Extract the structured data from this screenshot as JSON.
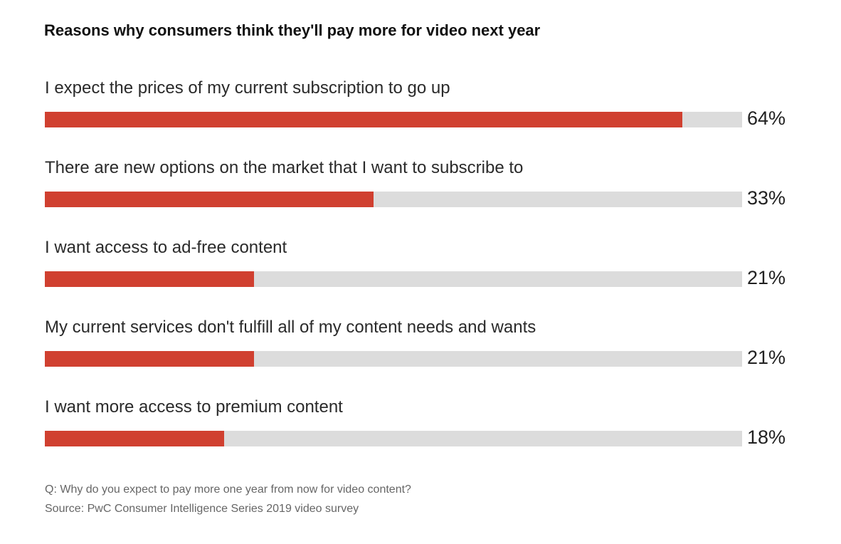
{
  "chart_data": {
    "type": "bar",
    "orientation": "horizontal",
    "title": "Reasons why consumers think they'll pay more for video next year",
    "categories": [
      "I expect the prices of my current subscription to go up",
      "There are new options on the market that I want to subscribe to",
      "I want access to ad-free content",
      "My current services don't fulfill all of my content needs and wants",
      "I want more access to premium content"
    ],
    "values": [
      64,
      33,
      21,
      21,
      18
    ],
    "value_labels": [
      "64%",
      "33%",
      "21%",
      "21%",
      "18%"
    ],
    "unit": "%",
    "xlim": [
      0,
      70
    ],
    "grid": false,
    "colors": {
      "bar": "#d04030",
      "track": "#dcdcdc"
    }
  },
  "footnote": {
    "question": "Q: Why do you expect to pay more one year from now for video content?",
    "source": "Source: PwC Consumer Intelligence Series 2019 video survey"
  }
}
